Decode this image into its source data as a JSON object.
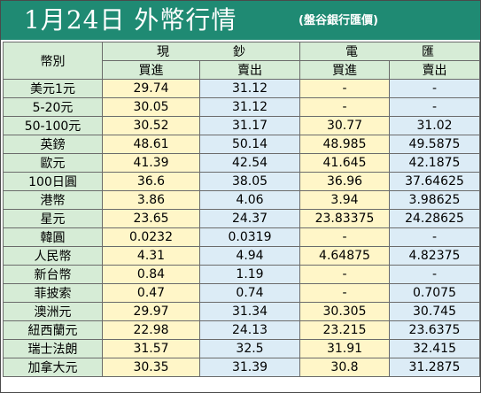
{
  "header": {
    "title": "1月24日 外幣行情",
    "subtitle": "(盤谷銀行匯價)"
  },
  "columns": {
    "currency": "幣別",
    "cash": [
      "現",
      "鈔"
    ],
    "spot": [
      "電",
      "匯"
    ],
    "buy": "買進",
    "sell": "賣出"
  },
  "colors": {
    "banner": "#1f8a73",
    "label_bg": "#d6ecd6",
    "buy_bg": "#fff6c8",
    "sell_bg": "#dcecf6"
  },
  "rows": [
    {
      "currency": "美元1元",
      "cash_buy": "29.74",
      "cash_sell": "31.12",
      "spot_buy": "-",
      "spot_sell": "-"
    },
    {
      "currency": "5-20元",
      "cash_buy": "30.05",
      "cash_sell": "31.12",
      "spot_buy": "-",
      "spot_sell": "-"
    },
    {
      "currency": "50-100元",
      "cash_buy": "30.52",
      "cash_sell": "31.17",
      "spot_buy": "30.77",
      "spot_sell": "31.02"
    },
    {
      "currency": "英鎊",
      "cash_buy": "48.61",
      "cash_sell": "50.14",
      "spot_buy": "48.985",
      "spot_sell": "49.5875"
    },
    {
      "currency": "歐元",
      "cash_buy": "41.39",
      "cash_sell": "42.54",
      "spot_buy": "41.645",
      "spot_sell": "42.1875"
    },
    {
      "currency": "100日圓",
      "cash_buy": "36.6",
      "cash_sell": "38.05",
      "spot_buy": "36.96",
      "spot_sell": "37.64625"
    },
    {
      "currency": "港幣",
      "cash_buy": "3.86",
      "cash_sell": "4.06",
      "spot_buy": "3.94",
      "spot_sell": "3.98625"
    },
    {
      "currency": "星元",
      "cash_buy": "23.65",
      "cash_sell": "24.37",
      "spot_buy": "23.83375",
      "spot_sell": "24.28625"
    },
    {
      "currency": "韓圓",
      "cash_buy": "0.0232",
      "cash_sell": "0.0319",
      "spot_buy": "-",
      "spot_sell": "-"
    },
    {
      "currency": "人民幣",
      "cash_buy": "4.31",
      "cash_sell": "4.94",
      "spot_buy": "4.64875",
      "spot_sell": "4.82375"
    },
    {
      "currency": "新台幣",
      "cash_buy": "0.84",
      "cash_sell": "1.19",
      "spot_buy": "-",
      "spot_sell": "-"
    },
    {
      "currency": "菲披索",
      "cash_buy": "0.47",
      "cash_sell": "0.74",
      "spot_buy": "-",
      "spot_sell": "0.7075"
    },
    {
      "currency": "澳洲元",
      "cash_buy": "29.97",
      "cash_sell": "31.34",
      "spot_buy": "30.305",
      "spot_sell": "30.745"
    },
    {
      "currency": "紐西蘭元",
      "cash_buy": "22.98",
      "cash_sell": "24.13",
      "spot_buy": "23.215",
      "spot_sell": "23.6375"
    },
    {
      "currency": "瑞士法朗",
      "cash_buy": "31.57",
      "cash_sell": "32.5",
      "spot_buy": "31.91",
      "spot_sell": "32.415"
    },
    {
      "currency": "加拿大元",
      "cash_buy": "30.35",
      "cash_sell": "31.39",
      "spot_buy": "30.8",
      "spot_sell": "31.2875"
    }
  ]
}
